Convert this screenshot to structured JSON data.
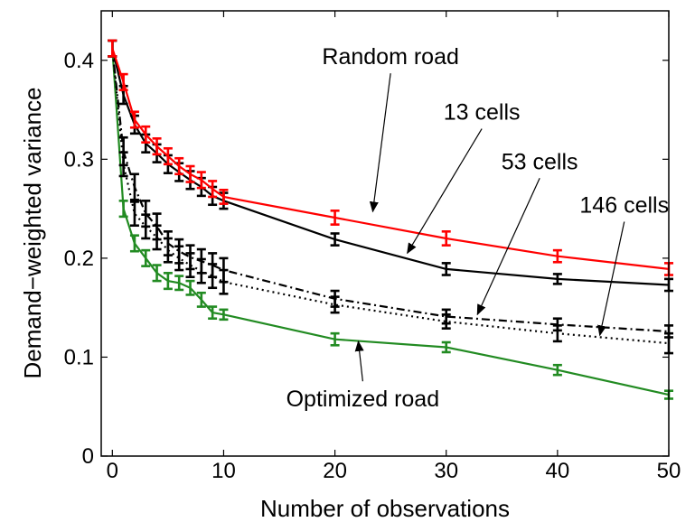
{
  "chart_data": {
    "type": "line",
    "title": "",
    "xlabel": "Number of observations",
    "ylabel": "Demand−weighted variance",
    "xlim": [
      -1,
      50
    ],
    "ylim": [
      0,
      0.45
    ],
    "xticks": [
      0,
      10,
      20,
      30,
      40,
      50
    ],
    "yticks": [
      0,
      0.1,
      0.2,
      0.3,
      0.4
    ],
    "ytick_labels": [
      "0",
      "0.1",
      "0.2",
      "0.3",
      "0.4"
    ],
    "grid": false,
    "legend": "none",
    "series": [
      {
        "name": "Random road",
        "color": "#ff0000",
        "dash": "solid",
        "x": [
          0,
          1,
          2,
          3,
          4,
          5,
          6,
          7,
          8,
          9,
          10,
          20,
          30,
          40,
          50
        ],
        "y": [
          0.412,
          0.378,
          0.34,
          0.325,
          0.313,
          0.303,
          0.293,
          0.285,
          0.279,
          0.27,
          0.262,
          0.241,
          0.22,
          0.202,
          0.189
        ],
        "err": [
          0.008,
          0.008,
          0.008,
          0.008,
          0.008,
          0.008,
          0.008,
          0.008,
          0.008,
          0.008,
          0.007,
          0.007,
          0.007,
          0.006,
          0.006
        ]
      },
      {
        "name": "13 cells",
        "color": "#000000",
        "dash": "solid",
        "x": [
          0,
          1,
          2,
          3,
          4,
          5,
          6,
          7,
          8,
          9,
          10,
          20,
          30,
          40,
          50
        ],
        "y": [
          0.412,
          0.365,
          0.335,
          0.316,
          0.306,
          0.295,
          0.287,
          0.279,
          0.272,
          0.263,
          0.258,
          0.219,
          0.189,
          0.179,
          0.173
        ],
        "err": [
          0.008,
          0.009,
          0.009,
          0.009,
          0.009,
          0.009,
          0.009,
          0.009,
          0.009,
          0.009,
          0.008,
          0.006,
          0.006,
          0.005,
          0.006
        ]
      },
      {
        "name": "53 cells",
        "color": "#000000",
        "dash": "dashdot",
        "x": [
          0,
          1,
          2,
          3,
          4,
          5,
          6,
          7,
          8,
          9,
          10,
          20,
          30,
          40,
          50
        ],
        "y": [
          0.412,
          0.308,
          0.272,
          0.245,
          0.232,
          0.215,
          0.207,
          0.201,
          0.197,
          0.193,
          0.188,
          0.159,
          0.141,
          0.133,
          0.126
        ],
        "err": [
          0.008,
          0.014,
          0.013,
          0.013,
          0.013,
          0.012,
          0.012,
          0.012,
          0.012,
          0.012,
          0.012,
          0.008,
          0.007,
          0.006,
          0.006
        ]
      },
      {
        "name": "146 cells",
        "color": "#000000",
        "dash": "dotted",
        "x": [
          0,
          1,
          2,
          3,
          4,
          5,
          6,
          7,
          8,
          9,
          10,
          20,
          30,
          40,
          50
        ],
        "y": [
          0.412,
          0.295,
          0.245,
          0.232,
          0.221,
          0.208,
          0.2,
          0.193,
          0.187,
          0.182,
          0.176,
          0.153,
          0.136,
          0.124,
          0.114
        ],
        "err": [
          0.008,
          0.012,
          0.012,
          0.012,
          0.012,
          0.012,
          0.012,
          0.012,
          0.012,
          0.012,
          0.012,
          0.008,
          0.007,
          0.008,
          0.01
        ]
      },
      {
        "name": "Optimized road",
        "color": "#228b22",
        "dash": "solid",
        "x": [
          0,
          1,
          2,
          3,
          4,
          5,
          6,
          7,
          8,
          9,
          10,
          20,
          30,
          40,
          50
        ],
        "y": [
          0.412,
          0.25,
          0.215,
          0.2,
          0.185,
          0.177,
          0.175,
          0.17,
          0.158,
          0.145,
          0.143,
          0.118,
          0.11,
          0.087,
          0.062
        ],
        "err": [
          0.008,
          0.008,
          0.008,
          0.008,
          0.008,
          0.008,
          0.007,
          0.007,
          0.007,
          0.006,
          0.005,
          0.006,
          0.005,
          0.005,
          0.004
        ]
      }
    ],
    "annotations": [
      {
        "text": "Random road",
        "text_x": 25,
        "text_y": 0.396,
        "point_x": 23.4,
        "point_y": 0.247
      },
      {
        "text": "13 cells",
        "text_x": 33.2,
        "text_y": 0.34,
        "point_x": 26.5,
        "point_y": 0.205
      },
      {
        "text": "53 cells",
        "text_x": 38.4,
        "text_y": 0.29,
        "point_x": 32.8,
        "point_y": 0.143
      },
      {
        "text": "146 cells",
        "text_x": 46,
        "text_y": 0.246,
        "point_x": 43.8,
        "point_y": 0.122
      },
      {
        "text": "Optimized road",
        "text_x": 22.5,
        "text_y": 0.05,
        "point_x": 22.1,
        "point_y": 0.116
      }
    ]
  }
}
